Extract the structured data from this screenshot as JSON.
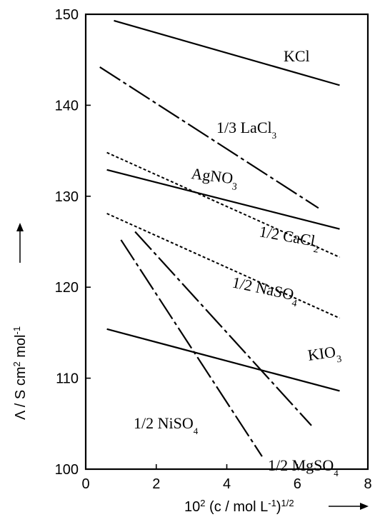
{
  "chart_data": {
    "type": "line",
    "xlabel": "10² (c / mol L⁻¹)^½",
    "ylabel": "Λ / S cm² mol⁻¹",
    "xlim": [
      0,
      8
    ],
    "ylim": [
      100,
      150
    ],
    "xticks": [
      0,
      2,
      4,
      6,
      8
    ],
    "yticks": [
      100,
      110,
      120,
      130,
      140,
      150
    ],
    "grid": false,
    "series": [
      {
        "name": "KCl",
        "style": "solid",
        "x": [
          0.8,
          7.2
        ],
        "y": [
          149.3,
          142.2
        ]
      },
      {
        "name": "1/3 LaCl3",
        "style": "long-dash",
        "x": [
          0.4,
          6.6
        ],
        "y": [
          144.2,
          128.7
        ]
      },
      {
        "name": "AgNO3",
        "style": "solid",
        "x": [
          0.6,
          7.2
        ],
        "y": [
          132.9,
          126.4
        ]
      },
      {
        "name": "1/2 CaCl2",
        "style": "dotted",
        "x": [
          0.6,
          7.2
        ],
        "y": [
          134.8,
          123.3
        ]
      },
      {
        "name": "1/2 NaSO4",
        "style": "dotted",
        "x": [
          0.6,
          7.2
        ],
        "y": [
          128.1,
          116.6
        ]
      },
      {
        "name": "KIO3",
        "style": "solid",
        "x": [
          0.6,
          7.2
        ],
        "y": [
          115.4,
          108.6
        ]
      },
      {
        "name": "1/2 MgSO4",
        "style": "long-dash",
        "x": [
          1.4,
          6.4
        ],
        "y": [
          126.1,
          104.8
        ]
      },
      {
        "name": "1/2 NiSO4",
        "style": "long-dash",
        "x": [
          1.0,
          5.0
        ],
        "y": [
          125.2,
          101.4
        ]
      }
    ]
  },
  "labels": {
    "kcl": "KCl",
    "lacl3_pre": "1/3 LaCl",
    "lacl3_sub": "3",
    "agno3_pre": "AgNO",
    "agno3_sub": "3",
    "cacl2_pre": "1/2 CaCl",
    "cacl2_sub": "2",
    "naso4_pre": "1/2 NaSO",
    "naso4_sub": "4",
    "kio3_pre": "KIO",
    "kio3_sub": "3",
    "mgso4_pre": "1/2 MgSO",
    "mgso4_sub": "4",
    "niso4_pre": "1/2 NiSO",
    "niso4_sub": "4"
  },
  "axis_text": {
    "y_lambda": "Λ / S cm",
    "y_sq": "2",
    "y_mol": " mol",
    "y_neg1": "-1",
    "x_pre": "10",
    "x_sq": "2",
    "x_mid": " (c / mol L",
    "x_neg1": "-1",
    "x_close": ")",
    "x_half": "1/2"
  }
}
